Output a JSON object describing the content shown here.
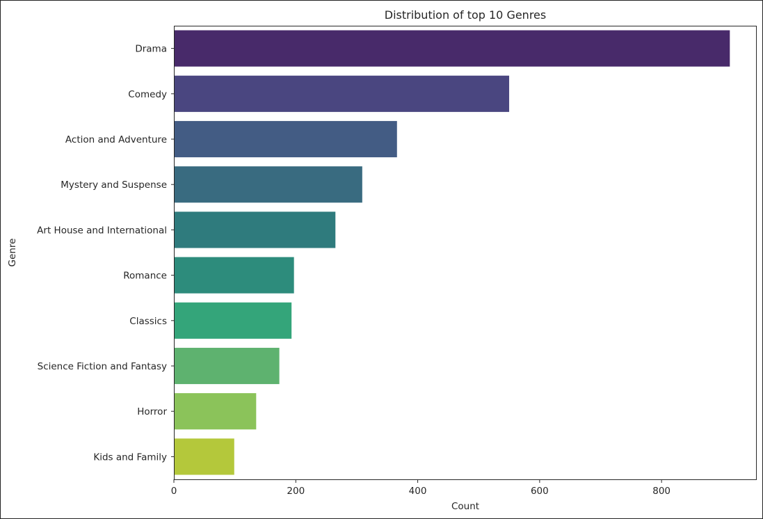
{
  "chart_data": {
    "type": "bar",
    "orientation": "horizontal",
    "title": "Distribution of top 10 Genres",
    "xlabel": "Count",
    "ylabel": "Genre",
    "categories": [
      "Drama",
      "Comedy",
      "Action and Adventure",
      "Mystery and Suspense",
      "Art House and International",
      "Romance",
      "Classics",
      "Science Fiction and Fantasy",
      "Horror",
      "Kids and Family"
    ],
    "values": [
      912,
      550,
      366,
      309,
      265,
      197,
      193,
      173,
      135,
      99
    ],
    "colors": [
      "#482a6a",
      "#4a4680",
      "#435c84",
      "#396b80",
      "#2f7b7d",
      "#2d8c7c",
      "#34a57a",
      "#5eb26f",
      "#8bc35a",
      "#b4c83b"
    ],
    "xlim": [
      0,
      955
    ],
    "xticks": [
      0,
      200,
      400,
      600,
      800
    ],
    "grid": false
  }
}
